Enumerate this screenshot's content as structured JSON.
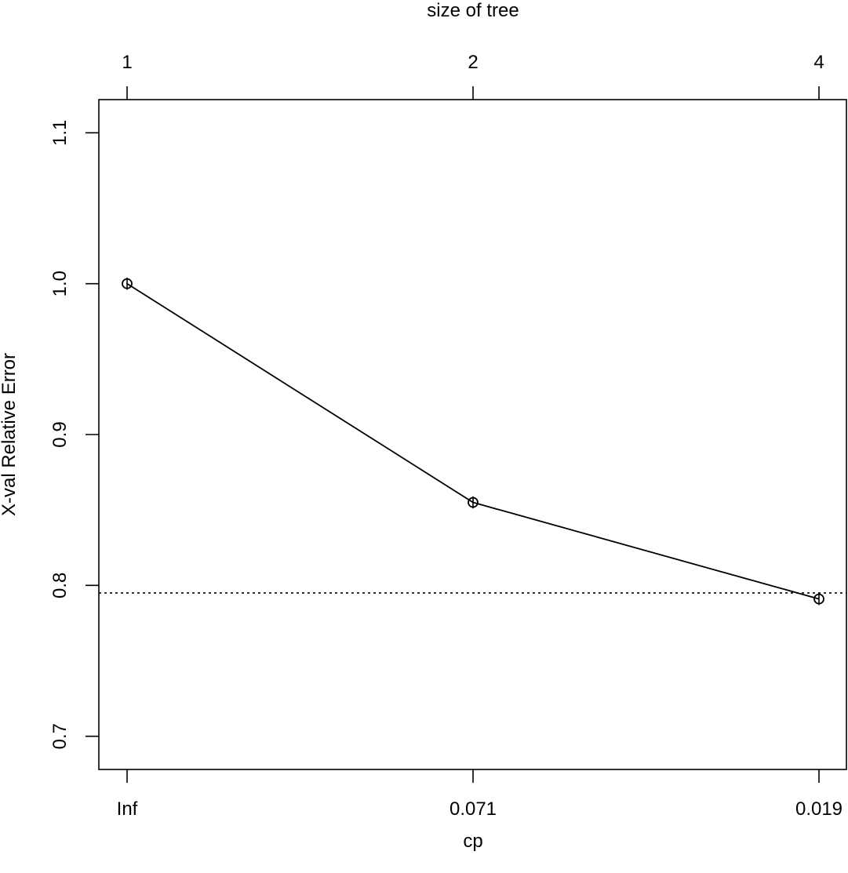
{
  "chart_data": {
    "type": "line",
    "title": "",
    "xlabel": "cp",
    "ylabel": "X-val Relative Error",
    "top_axis_label": "size of tree",
    "x_categories": [
      "Inf",
      "0.071",
      "0.019"
    ],
    "top_categories": [
      "1",
      "2",
      "4"
    ],
    "y_values": [
      1.0,
      0.855,
      0.791
    ],
    "error_bar_halfwidth": [
      0.004,
      0.004,
      0.004
    ],
    "reference_line": 0.795,
    "ylim": [
      0.678,
      1.122
    ],
    "y_ticks": [
      0.7,
      0.8,
      0.9,
      1.0,
      1.1
    ],
    "y_tick_labels": [
      "0.7",
      "0.8",
      "0.9",
      "1.0",
      "1.1"
    ],
    "grid": false,
    "legend": "none",
    "colors": {
      "line": "#000000",
      "reference_line": "#000000"
    }
  }
}
